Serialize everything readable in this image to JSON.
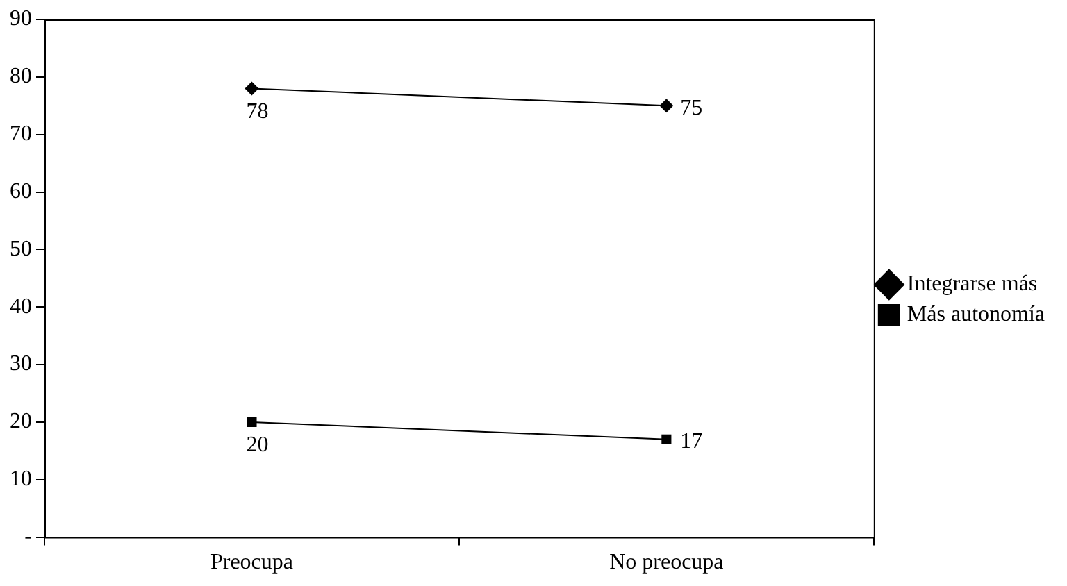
{
  "chart_data": {
    "type": "line",
    "categories": [
      "Preocupa",
      "No preocupa"
    ],
    "series": [
      {
        "name": "Integrarse más",
        "color": "#000000",
        "values": [
          78,
          75
        ],
        "marker": "diamond"
      },
      {
        "name": "Más autonomía",
        "color": "#000000",
        "values": [
          20,
          17
        ],
        "marker": "square"
      }
    ],
    "ylim": [
      0,
      90
    ],
    "yticks": [
      {
        "value": 0,
        "label": "-"
      },
      10,
      20,
      30,
      40,
      50,
      60,
      70,
      80,
      90
    ],
    "grid": false,
    "legend": "right",
    "data_labels": true,
    "line_style": "solid"
  }
}
